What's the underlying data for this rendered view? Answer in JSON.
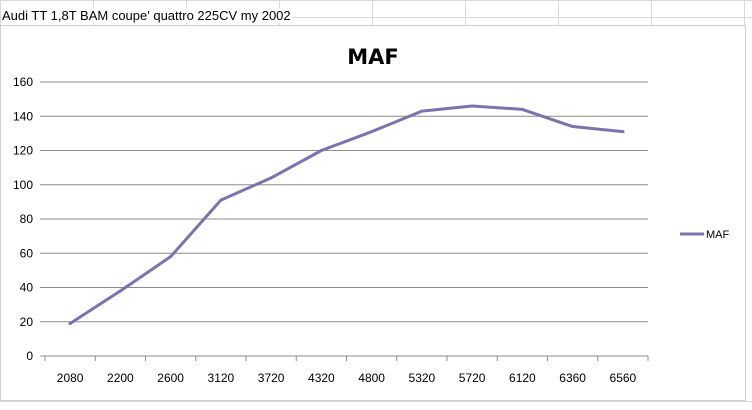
{
  "sheet": {
    "cell_text": "Audi TT 1,8T BAM coupe' quattro 225CV my 2002"
  },
  "colors": {
    "series": "#7b73ac",
    "grid": "#8c8c8c",
    "axis": "#8c8c8c"
  },
  "chart_data": {
    "type": "line",
    "title": "MAF",
    "xlabel": "",
    "ylabel": "",
    "categories": [
      "2080",
      "2200",
      "2600",
      "3120",
      "3720",
      "4320",
      "4800",
      "5320",
      "5720",
      "6120",
      "6360",
      "6560"
    ],
    "series": [
      {
        "name": "MAF",
        "values": [
          19,
          38,
          58,
          91,
          104,
          120,
          131,
          143,
          146,
          144,
          134,
          131
        ]
      }
    ],
    "ylim": [
      0,
      160
    ],
    "yticks": [
      "0",
      "20",
      "40",
      "60",
      "80",
      "100",
      "120",
      "140",
      "160"
    ],
    "grid": true,
    "legend": "right"
  }
}
